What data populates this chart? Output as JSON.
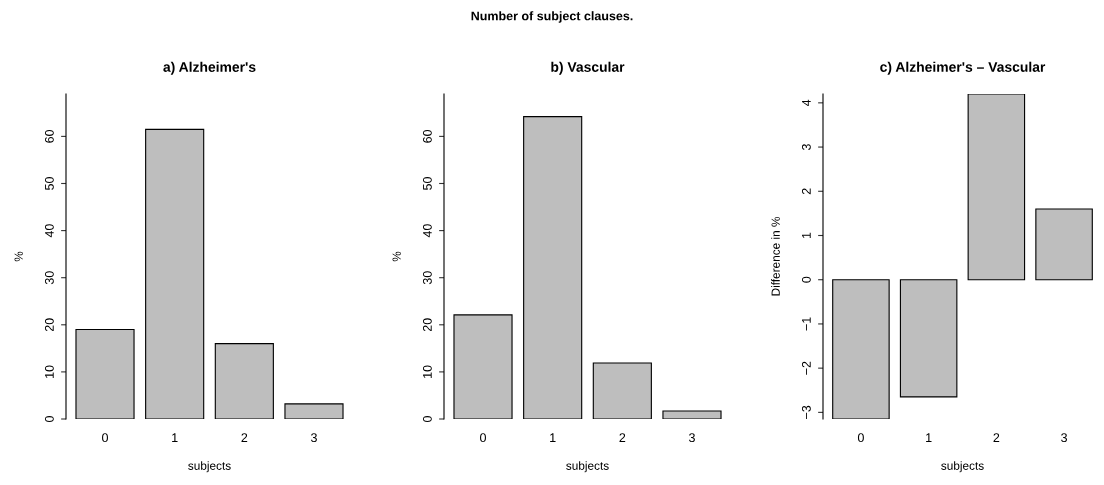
{
  "chart_data": [
    {
      "type": "bar",
      "title": "a) Alzheimer's",
      "xlabel": "subjects",
      "ylabel": "%",
      "categories": [
        "0",
        "1",
        "2",
        "3"
      ],
      "values": [
        19,
        61.5,
        16,
        3.2
      ],
      "color": "#bebebe",
      "ylim": [
        0,
        69
      ],
      "yticks": [
        0,
        10,
        20,
        30,
        40,
        50,
        60
      ],
      "grid": false,
      "legend": false,
      "annotations": [
        "Number of subject clauses."
      ]
    },
    {
      "type": "bar",
      "title": "b) Vascular",
      "xlabel": "subjects",
      "ylabel": "%",
      "categories": [
        "0",
        "1",
        "2",
        "3"
      ],
      "values": [
        22.1,
        64.2,
        11.9,
        1.7
      ],
      "color": "#bebebe",
      "ylim": [
        0,
        69
      ],
      "yticks": [
        0,
        10,
        20,
        30,
        40,
        50,
        60
      ],
      "grid": false,
      "legend": false
    },
    {
      "type": "bar",
      "title": "c) Alzheimer's – Vascular",
      "xlabel": "subjects",
      "ylabel": "Difference in %",
      "categories": [
        "0",
        "1",
        "2",
        "3"
      ],
      "values": [
        -3.15,
        -2.65,
        4.2,
        1.6
      ],
      "color": "#bebebe",
      "ylim": [
        -3.15,
        4.2
      ],
      "yticks": [
        {
          "value": -3,
          "label": "−3"
        },
        {
          "value": -2,
          "label": "−2"
        },
        {
          "value": -1,
          "label": "−1"
        },
        0,
        1,
        2,
        3,
        4
      ],
      "grid": false,
      "legend": false
    }
  ]
}
